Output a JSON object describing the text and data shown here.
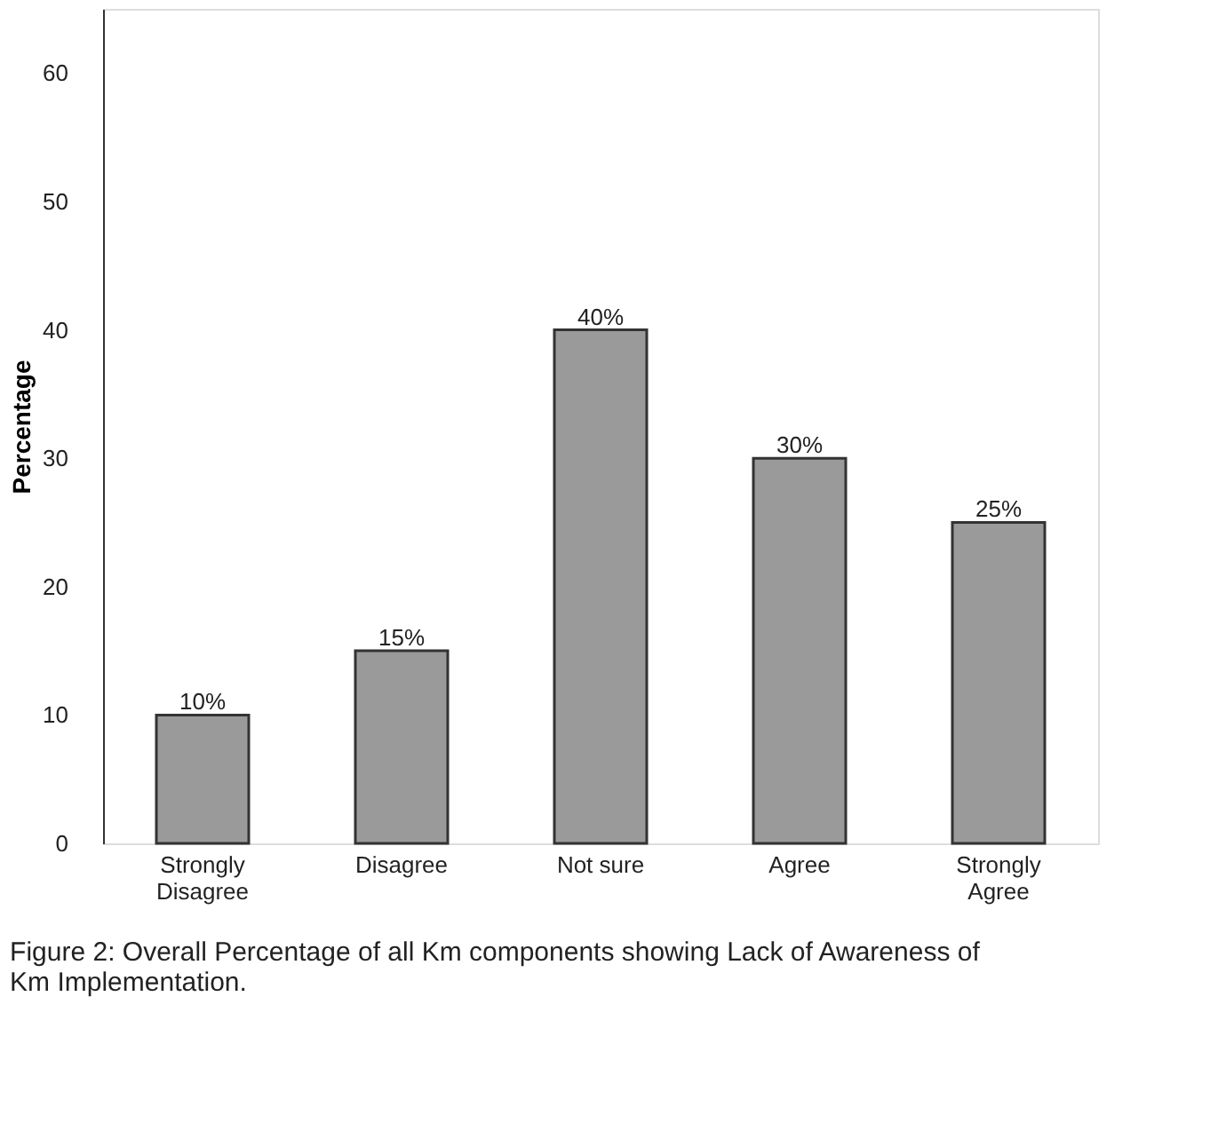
{
  "chart_data": {
    "type": "bar",
    "ylabel": "Percentage",
    "categories": [
      "Strongly Disagree",
      "Disagree",
      "Not sure",
      "Agree",
      "Strongly Agree"
    ],
    "values": [
      10,
      15,
      40,
      30,
      25
    ],
    "value_labels": [
      "10%",
      "15%",
      "40%",
      "30%",
      "25%"
    ],
    "color": "#9a9a9a",
    "ylim": [
      0,
      65
    ],
    "yticks": [
      0,
      10,
      20,
      30,
      40,
      50,
      60
    ],
    "grid": false,
    "annotations": [
      "Figure 2: Overall Percentage of all Km components showing Lack of Awareness of Km Implementation."
    ]
  }
}
